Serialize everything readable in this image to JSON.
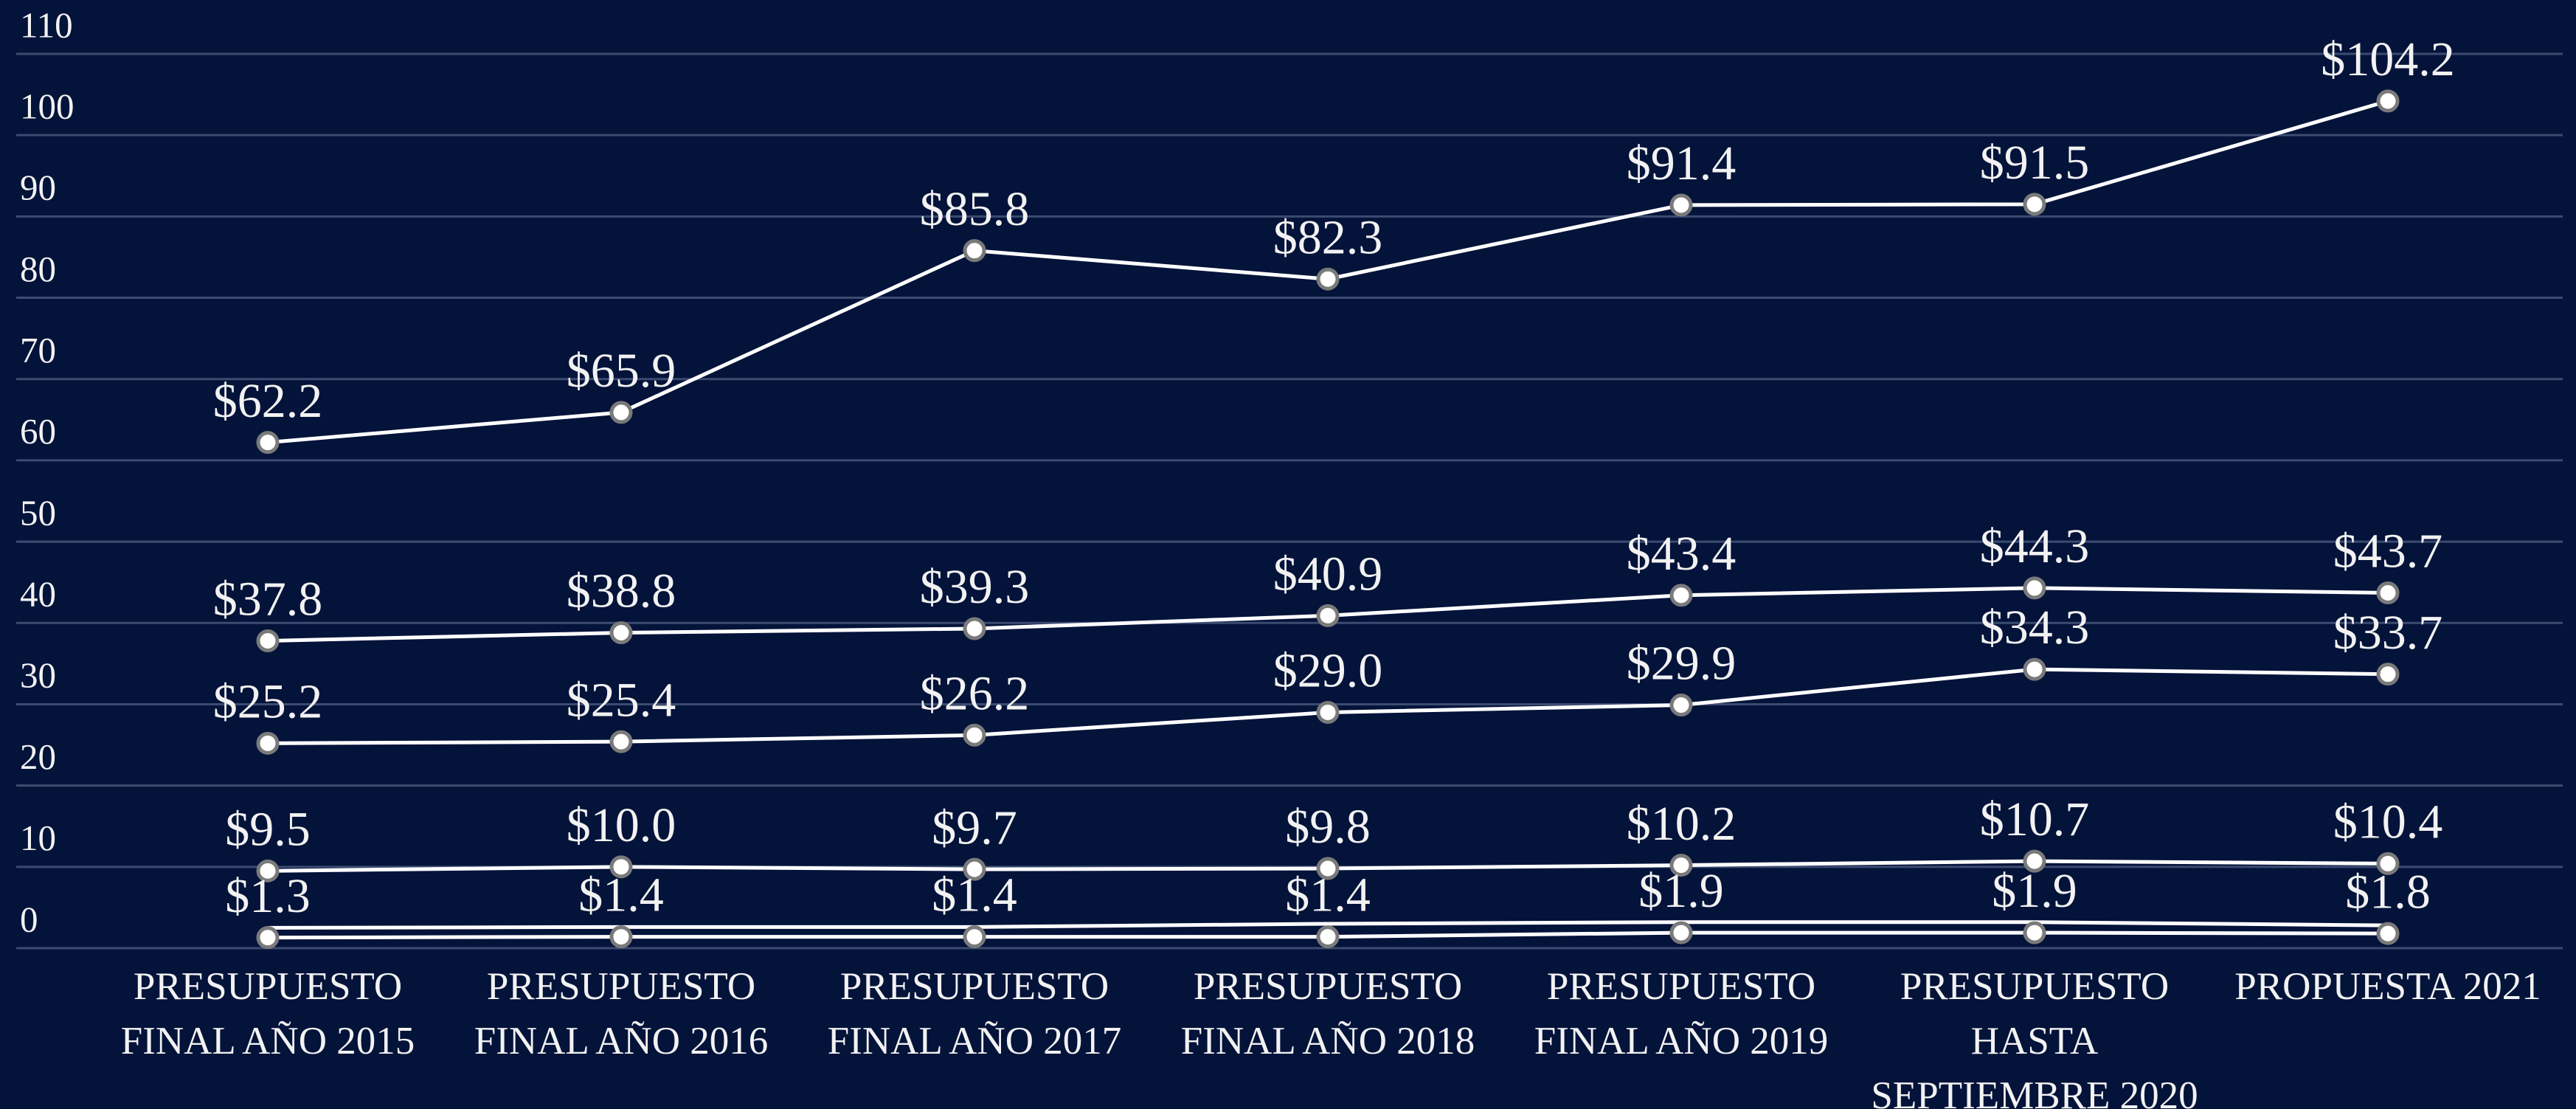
{
  "chart_data": {
    "type": "line",
    "categories": [
      "PRESUPUESTO FINAL AÑO 2015",
      "PRESUPUESTO FINAL AÑO 2016",
      "PRESUPUESTO FINAL AÑO 2017",
      "PRESUPUESTO FINAL AÑO 2018",
      "PRESUPUESTO FINAL AÑO 2019",
      "PRESUPUESTO HASTA SEPTIEMBRE 2020",
      "PROPUESTA 2021"
    ],
    "series": [
      {
        "color": "#ffffff",
        "values": [
          62.2,
          65.9,
          85.8,
          82.3,
          91.4,
          91.5,
          104.2
        ],
        "value_labels": [
          "$62.2",
          "$65.9",
          "$85.8",
          "$82.3",
          "$91.4",
          "$91.5",
          "$104.2"
        ]
      },
      {
        "color": "#ffffff",
        "values": [
          37.8,
          38.8,
          39.3,
          40.9,
          43.4,
          44.3,
          43.7
        ],
        "value_labels": [
          "$37.8",
          "$38.8",
          "$39.3",
          "$40.9",
          "$43.4",
          "$44.3",
          "$43.7"
        ]
      },
      {
        "color": "#ffffff",
        "values": [
          25.2,
          25.4,
          26.2,
          29.0,
          29.9,
          34.3,
          33.7
        ],
        "value_labels": [
          "$25.2",
          "$25.4",
          "$26.2",
          "$29.0",
          "$29.9",
          "$34.3",
          "$33.7"
        ]
      },
      {
        "color": "#ffffff",
        "values": [
          9.5,
          10.0,
          9.7,
          9.8,
          10.2,
          10.7,
          10.4
        ],
        "value_labels": [
          "$9.5",
          "$10.0",
          "$9.7",
          "$9.8",
          "$10.2",
          "$10.7",
          "$10.4"
        ]
      },
      {
        "color": "#ffffff",
        "values": [
          1.3,
          1.4,
          1.4,
          1.4,
          1.9,
          1.9,
          1.8
        ],
        "value_labels": [
          "$1.3",
          "$1.4",
          "$1.4",
          "$1.4",
          "$1.9",
          "$1.9",
          "$1.8"
        ]
      },
      {
        "color": "#ffffff",
        "values": [
          2.5,
          2.6,
          2.6,
          3.0,
          3.2,
          3.2,
          2.8
        ]
      }
    ],
    "ylim": [
      0,
      110
    ],
    "yticks": [
      0,
      10,
      20,
      30,
      40,
      50,
      60,
      70,
      80,
      90,
      100,
      110
    ],
    "grid": true
  }
}
